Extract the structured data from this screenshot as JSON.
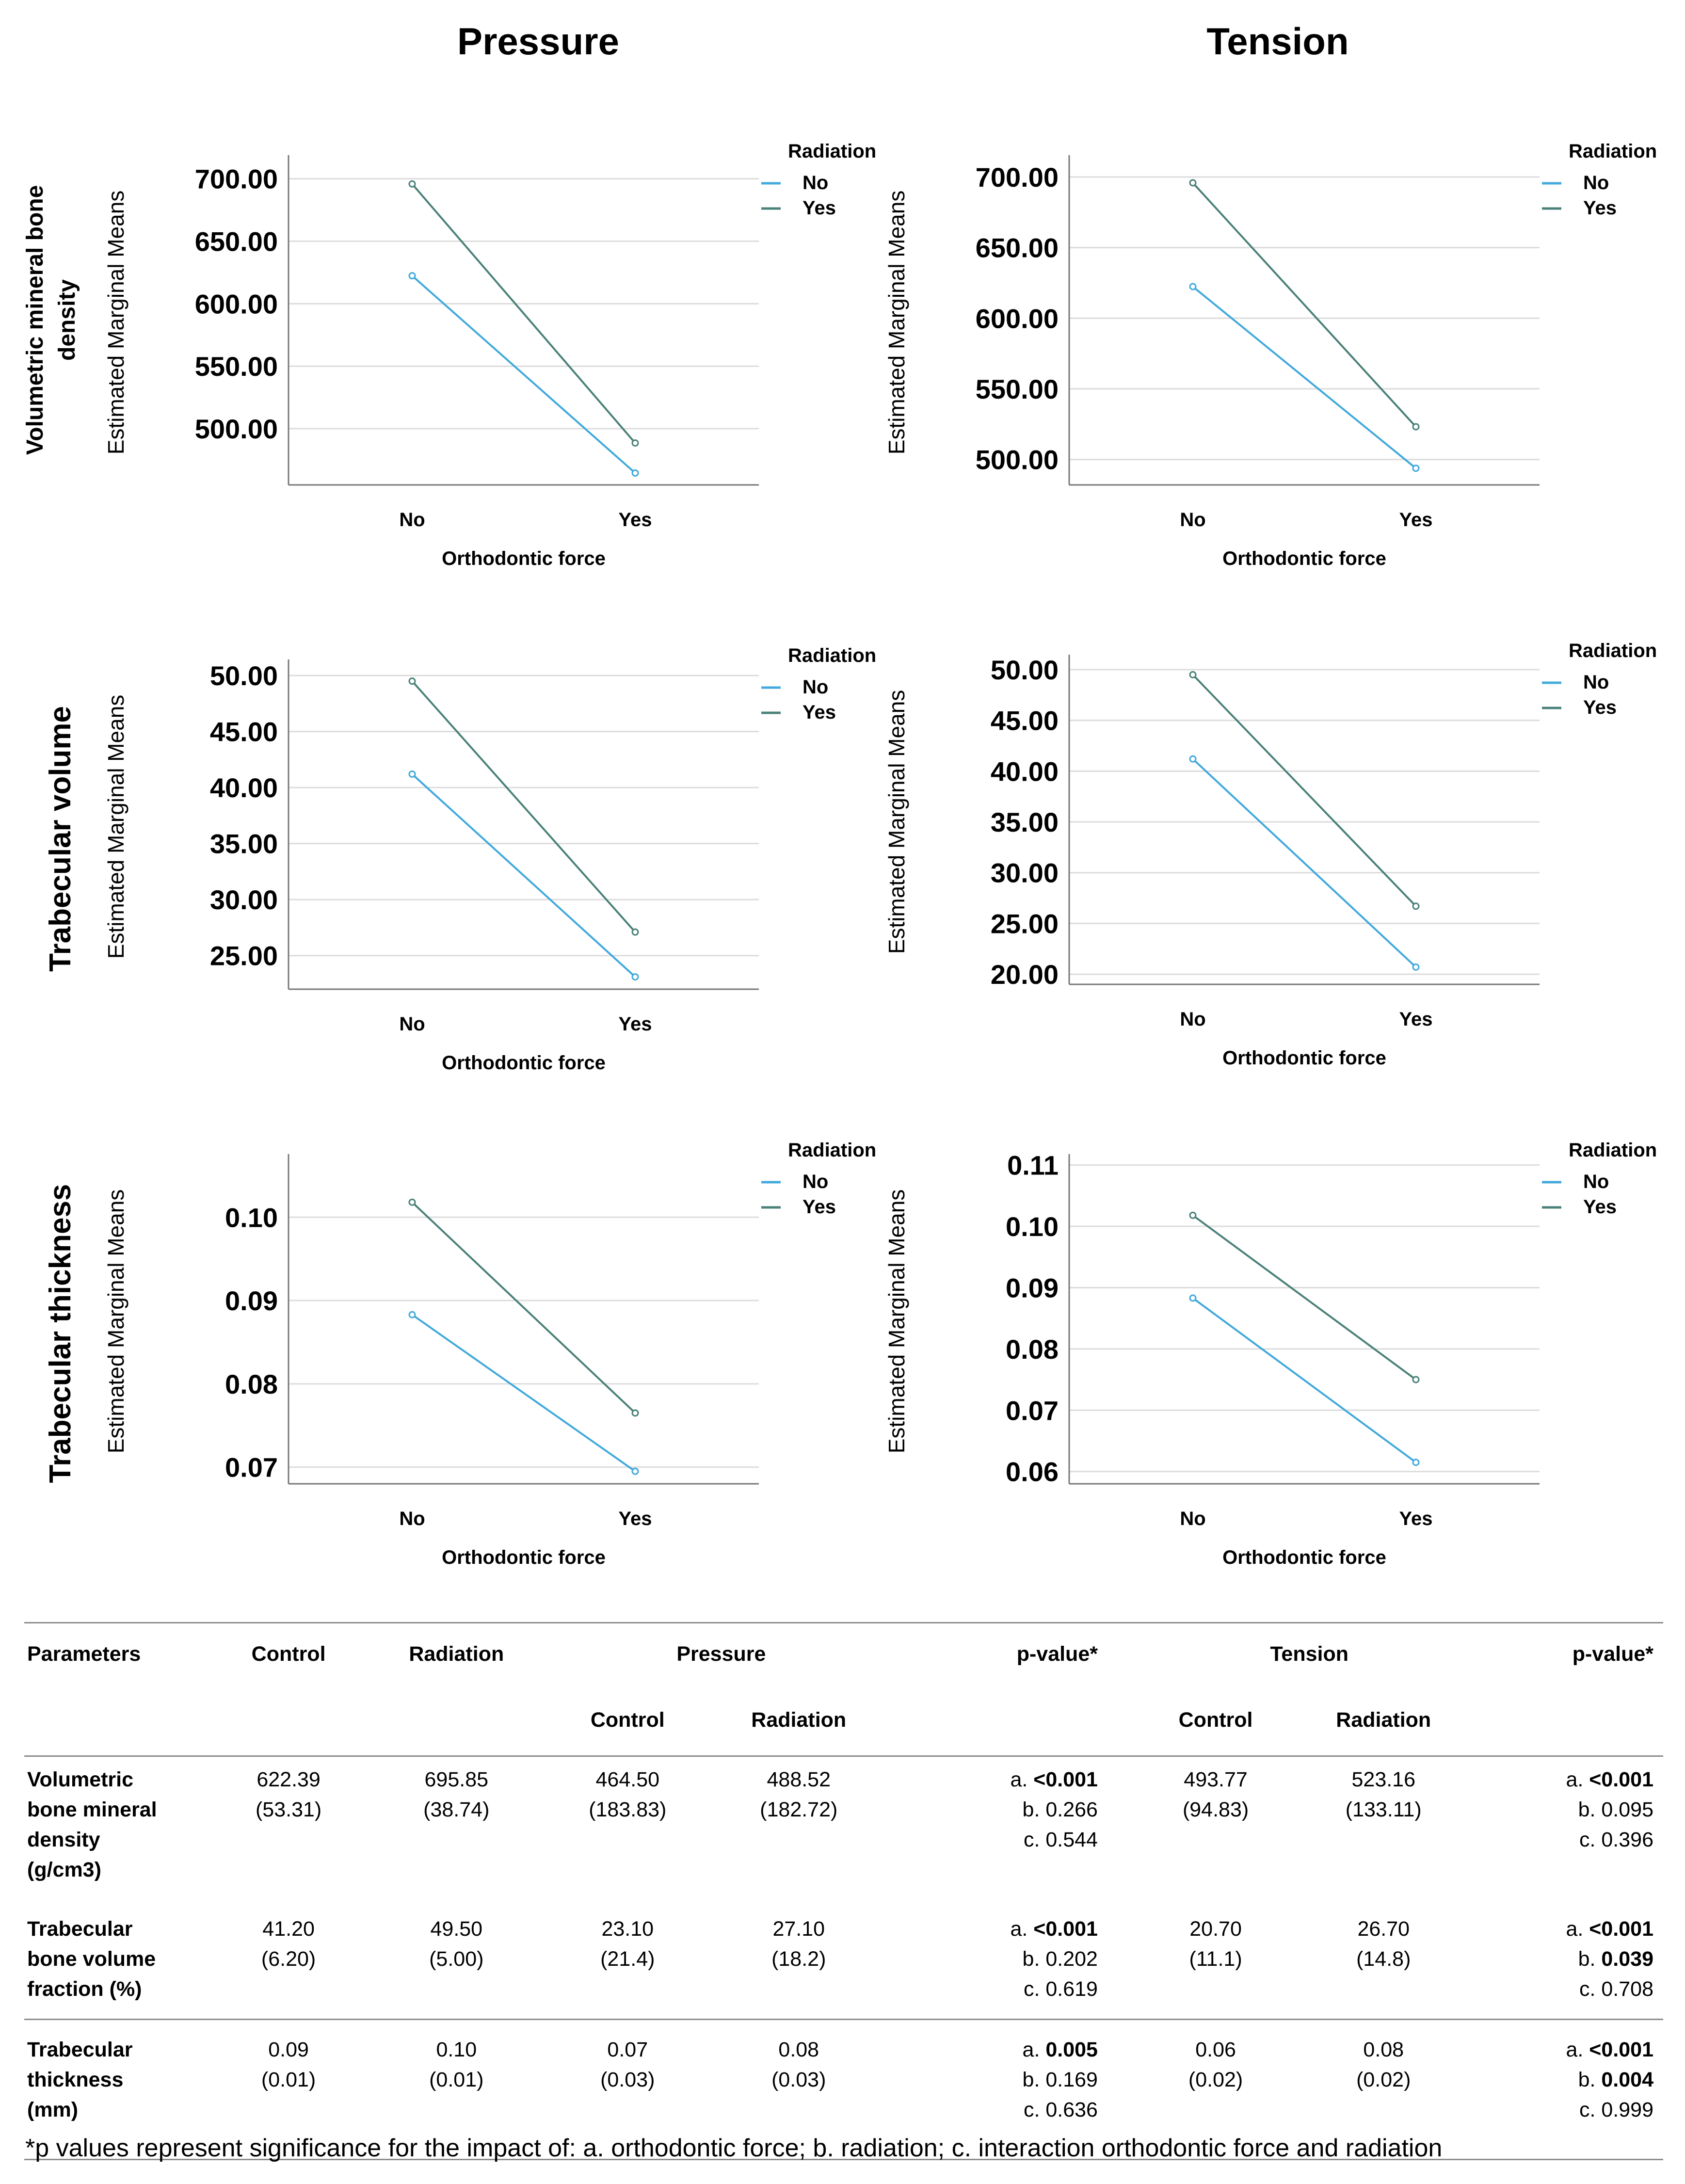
{
  "column_titles": {
    "pressure": "Pressure",
    "tension": "Tension"
  },
  "row_titles": {
    "vbmd": [
      "Volumetric mineral bone",
      "density"
    ],
    "tv": "Trabecular volume",
    "tt": "Trabecular thickness"
  },
  "chart_data": [
    {
      "id": "p-vbmd",
      "type": "line",
      "panel": "Pressure",
      "row": "Volumetric mineral bone density",
      "title": "",
      "xlabel": "Orthodontic force",
      "ylabel": "Estimated Marginal Means",
      "categories": [
        "No",
        "Yes"
      ],
      "legend_title": "Radiation",
      "ylim": [
        455,
        715
      ],
      "yticks": [
        500,
        550,
        600,
        650,
        700
      ],
      "ytick_labels": [
        "500.00",
        "550.00",
        "600.00",
        "650.00",
        "700.00"
      ],
      "series": [
        {
          "name": "No",
          "color": "#41a9dc",
          "values": [
            622.39,
            464.5
          ]
        },
        {
          "name": "Yes",
          "color": "#4a8178",
          "values": [
            695.85,
            488.52
          ]
        }
      ]
    },
    {
      "id": "t-vbmd",
      "type": "line",
      "panel": "Tension",
      "row": "Volumetric mineral bone density",
      "title": "",
      "xlabel": "Orthodontic force",
      "ylabel": "Estimated Marginal Means",
      "categories": [
        "No",
        "Yes"
      ],
      "legend_title": "Radiation",
      "ylim": [
        482,
        712
      ],
      "yticks": [
        500,
        550,
        600,
        650,
        700
      ],
      "ytick_labels": [
        "500.00",
        "550.00",
        "600.00",
        "650.00",
        "700.00"
      ],
      "series": [
        {
          "name": "No",
          "color": "#41a9dc",
          "values": [
            622.39,
            493.77
          ]
        },
        {
          "name": "Yes",
          "color": "#4a8178",
          "values": [
            695.85,
            523.16
          ]
        }
      ]
    },
    {
      "id": "p-tv",
      "type": "line",
      "panel": "Pressure",
      "row": "Trabecular volume",
      "title": "",
      "xlabel": "Orthodontic force",
      "ylabel": "Estimated Marginal Means",
      "categories": [
        "No",
        "Yes"
      ],
      "legend_title": "Radiation",
      "ylim": [
        22,
        51
      ],
      "yticks": [
        25,
        30,
        35,
        40,
        45,
        50
      ],
      "ytick_labels": [
        "25.00",
        "30.00",
        "35.00",
        "40.00",
        "45.00",
        "50.00"
      ],
      "series": [
        {
          "name": "No",
          "color": "#41a9dc",
          "values": [
            41.2,
            23.1
          ]
        },
        {
          "name": "Yes",
          "color": "#4a8178",
          "values": [
            49.5,
            27.1
          ]
        }
      ]
    },
    {
      "id": "t-tv",
      "type": "line",
      "panel": "Tension",
      "row": "Trabecular volume",
      "title": "",
      "xlabel": "Orthodontic force",
      "ylabel": "Estimated Marginal Means",
      "categories": [
        "No",
        "Yes"
      ],
      "legend_title": "Radiation",
      "ylim": [
        19,
        51
      ],
      "yticks": [
        20,
        25,
        30,
        35,
        40,
        45,
        50
      ],
      "ytick_labels": [
        "20.00",
        "25.00",
        "30.00",
        "35.00",
        "40.00",
        "45.00",
        "50.00"
      ],
      "series": [
        {
          "name": "No",
          "color": "#41a9dc",
          "values": [
            41.2,
            20.7
          ]
        },
        {
          "name": "Yes",
          "color": "#4a8178",
          "values": [
            49.5,
            26.7
          ]
        }
      ]
    },
    {
      "id": "p-tt",
      "type": "line",
      "panel": "Pressure",
      "row": "Trabecular thickness",
      "title": "",
      "xlabel": "Orthodontic force",
      "ylabel": "Estimated Marginal Means",
      "categories": [
        "No",
        "Yes"
      ],
      "legend_title": "Radiation",
      "ylim": [
        0.068,
        0.107
      ],
      "yticks": [
        0.07,
        0.08,
        0.09,
        0.1
      ],
      "ytick_labels": [
        "0.07",
        "0.08",
        "0.09",
        "0.10"
      ],
      "series": [
        {
          "name": "No",
          "color": "#41a9dc",
          "values": [
            0.0883,
            0.0695
          ]
        },
        {
          "name": "Yes",
          "color": "#4a8178",
          "values": [
            0.1018,
            0.0765
          ]
        }
      ]
    },
    {
      "id": "t-tt",
      "type": "line",
      "panel": "Tension",
      "row": "Trabecular thickness",
      "title": "",
      "xlabel": "Orthodontic force",
      "ylabel": "Estimated Marginal Means",
      "categories": [
        "No",
        "Yes"
      ],
      "legend_title": "Radiation",
      "ylim": [
        0.058,
        0.111
      ],
      "yticks": [
        0.06,
        0.07,
        0.08,
        0.09,
        0.1,
        0.11
      ],
      "ytick_labels": [
        "0.06",
        "0.07",
        "0.08",
        "0.09",
        "0.10",
        "0.11"
      ],
      "series": [
        {
          "name": "No",
          "color": "#41a9dc",
          "values": [
            0.0883,
            0.0615
          ]
        },
        {
          "name": "Yes",
          "color": "#4a8178",
          "values": [
            0.1018,
            0.075
          ]
        }
      ]
    }
  ],
  "table": {
    "headers": {
      "parameters": "Parameters",
      "control": "Control",
      "radiation": "Radiation",
      "pressure": "Pressure",
      "pvalue": "p-value*",
      "tension": "Tension",
      "sub_control": "Control",
      "sub_radiation": "Radiation"
    },
    "rows": [
      {
        "param": [
          "Volumetric",
          "bone mineral",
          "density",
          "(g/cm3)"
        ],
        "control": [
          "622.39",
          "(53.31)"
        ],
        "radiation": [
          "695.85",
          "(38.74)"
        ],
        "p_control": [
          "464.50",
          "(183.83)"
        ],
        "p_radiation": [
          "488.52",
          "(182.72)"
        ],
        "p_pvalue": [
          {
            "pre": "a. ",
            "val": "<0.001",
            "bold": true
          },
          {
            "pre": "b. ",
            "val": "0.266",
            "bold": false
          },
          {
            "pre": "c. ",
            "val": "0.544",
            "bold": false
          }
        ],
        "t_control": [
          "493.77",
          "(94.83)"
        ],
        "t_radiation": [
          "523.16",
          "(133.11)"
        ],
        "t_pvalue": [
          {
            "pre": "a. ",
            "val": "<0.001",
            "bold": true
          },
          {
            "pre": "b. ",
            "val": "0.095",
            "bold": false
          },
          {
            "pre": "c. ",
            "val": "0.396",
            "bold": false
          }
        ]
      },
      {
        "param": [
          "Trabecular",
          "bone volume",
          "fraction (%)"
        ],
        "control": [
          "41.20",
          "(6.20)"
        ],
        "radiation": [
          "49.50",
          "(5.00)"
        ],
        "p_control": [
          "23.10",
          "(21.4)"
        ],
        "p_radiation": [
          "27.10",
          "(18.2)"
        ],
        "p_pvalue": [
          {
            "pre": "a. ",
            "val": "<0.001",
            "bold": true
          },
          {
            "pre": "b. ",
            "val": "0.202",
            "bold": false
          },
          {
            "pre": "c. ",
            "val": "0.619",
            "bold": false
          }
        ],
        "t_control": [
          "20.70",
          "(11.1)"
        ],
        "t_radiation": [
          "26.70",
          "(14.8)"
        ],
        "t_pvalue": [
          {
            "pre": "a. ",
            "val": "<0.001",
            "bold": true
          },
          {
            "pre": "b. ",
            "val": "0.039",
            "bold": true
          },
          {
            "pre": "c. ",
            "val": "0.708",
            "bold": false
          }
        ]
      },
      {
        "param": [
          "Trabecular",
          "thickness",
          "(mm)"
        ],
        "control": [
          "0.09",
          "(0.01)"
        ],
        "radiation": [
          "0.10",
          "(0.01)"
        ],
        "p_control": [
          "0.07",
          "(0.03)"
        ],
        "p_radiation": [
          "0.08",
          "(0.03)"
        ],
        "p_pvalue": [
          {
            "pre": "a. ",
            "val": "0.005",
            "bold": true
          },
          {
            "pre": "b. ",
            "val": "0.169",
            "bold": false
          },
          {
            "pre": "c. ",
            "val": "0.636",
            "bold": false
          }
        ],
        "t_control": [
          "0.06",
          "(0.02)"
        ],
        "t_radiation": [
          "0.08",
          "(0.02)"
        ],
        "t_pvalue": [
          {
            "pre": "a. ",
            "val": "<0.001",
            "bold": true
          },
          {
            "pre": "b. ",
            "val": "0.004",
            "bold": true
          },
          {
            "pre": "c. ",
            "val": "0.999",
            "bold": false
          }
        ]
      }
    ]
  },
  "footnote": "*p values represent significance for the impact of: a. orthodontic force; b. radiation; c. interaction orthodontic force and radiation"
}
